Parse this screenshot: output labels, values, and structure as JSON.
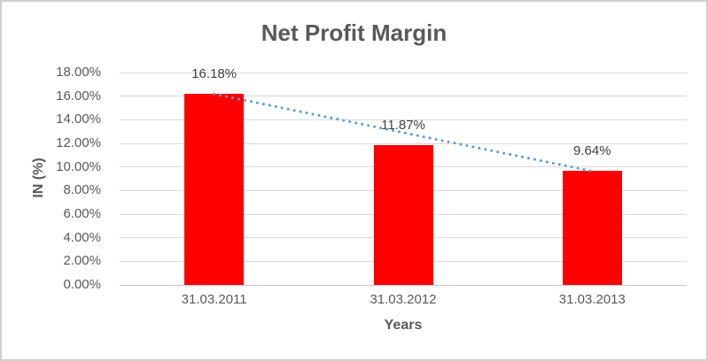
{
  "chart_data": {
    "type": "bar",
    "title": "Net Profit Margin",
    "xlabel": "Years",
    "ylabel": "IN (%)",
    "categories": [
      "31.03.2011",
      "31.03.2012",
      "31.03.2013"
    ],
    "series": [
      {
        "name": "Net Profit Margin",
        "values": [
          16.18,
          11.87,
          9.64
        ]
      }
    ],
    "data_labels": [
      "16.18%",
      "11.87%",
      "9.64%"
    ],
    "y_ticks": [
      "18.00%",
      "16.00%",
      "14.00%",
      "12.00%",
      "10.00%",
      "8.00%",
      "6.00%",
      "4.00%",
      "2.00%",
      "0.00%"
    ],
    "y_tick_values": [
      18,
      16,
      14,
      12,
      10,
      8,
      6,
      4,
      2,
      0
    ],
    "ylim": [
      0,
      18
    ],
    "grid": true,
    "legend": "none",
    "trendline": {
      "type": "linear",
      "style": "dotted",
      "from_value": 16.18,
      "to_value": 9.64
    }
  },
  "colors": {
    "bar": "#FF0000",
    "trendline": "#5B9BD5",
    "gridline": "#D9D9D9",
    "baseline": "#C6C6C6",
    "title_text": "#595959",
    "axis_text": "#595959",
    "data_label_text": "#404040",
    "chart_border": "#D0CECE",
    "background": "#FFFFFF"
  }
}
